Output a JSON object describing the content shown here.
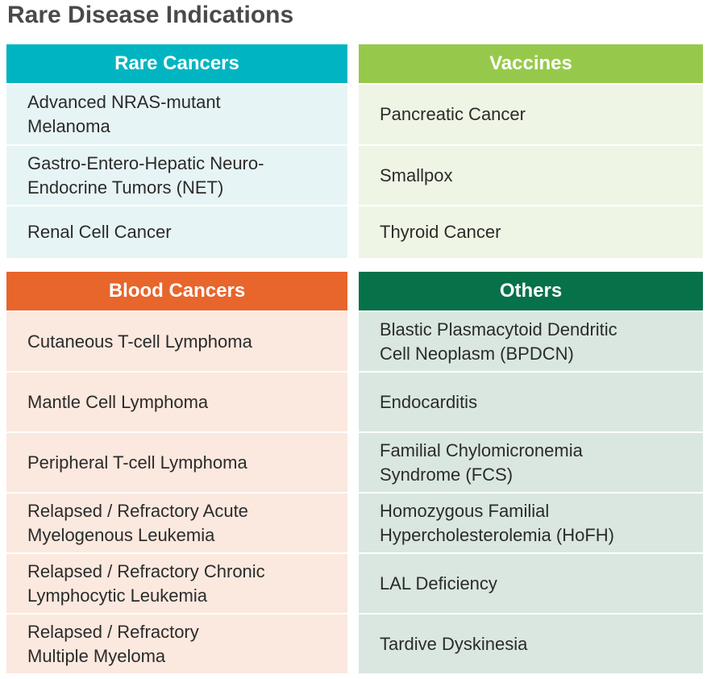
{
  "title": "Rare Disease Indications",
  "panels": [
    {
      "heading": "Rare Cancers",
      "header_color": "#00b5c1",
      "row_color": "#e7f4f5",
      "items": [
        [
          "Advanced NRAS-mutant",
          "Melanoma"
        ],
        [
          "Gastro-Entero-Hepatic Neuro-",
          "Endocrine Tumors (NET)"
        ],
        [
          "Renal Cell Cancer"
        ]
      ]
    },
    {
      "heading": "Vaccines",
      "header_color": "#96c94b",
      "row_color": "#eff5e4",
      "items": [
        [
          "Pancreatic Cancer"
        ],
        [
          "Smallpox"
        ],
        [
          "Thyroid Cancer"
        ]
      ]
    },
    {
      "heading": "Blood Cancers",
      "header_color": "#e8652c",
      "row_color": "#fbe8de",
      "items": [
        [
          "Cutaneous T-cell Lymphoma"
        ],
        [
          "Mantle Cell Lymphoma"
        ],
        [
          "Peripheral T-cell Lymphoma"
        ],
        [
          "Relapsed / Refractory Acute",
          "Myelogenous Leukemia"
        ],
        [
          "Relapsed / Refractory Chronic",
          "Lymphocytic Leukemia"
        ],
        [
          "Relapsed / Refractory",
          "Multiple Myeloma"
        ]
      ]
    },
    {
      "heading": "Others",
      "header_color": "#07714a",
      "row_color": "#d9e7e0",
      "items": [
        [
          "Blastic Plasmacytoid Dendritic",
          "Cell Neoplasm (BPDCN)"
        ],
        [
          "Endocarditis"
        ],
        [
          "Familial Chylomicronemia",
          "Syndrome (FCS)"
        ],
        [
          "Homozygous Familial",
          "Hypercholesterolemia (HoFH)"
        ],
        [
          "LAL Deficiency"
        ],
        [
          "Tardive Dyskinesia"
        ]
      ]
    }
  ]
}
